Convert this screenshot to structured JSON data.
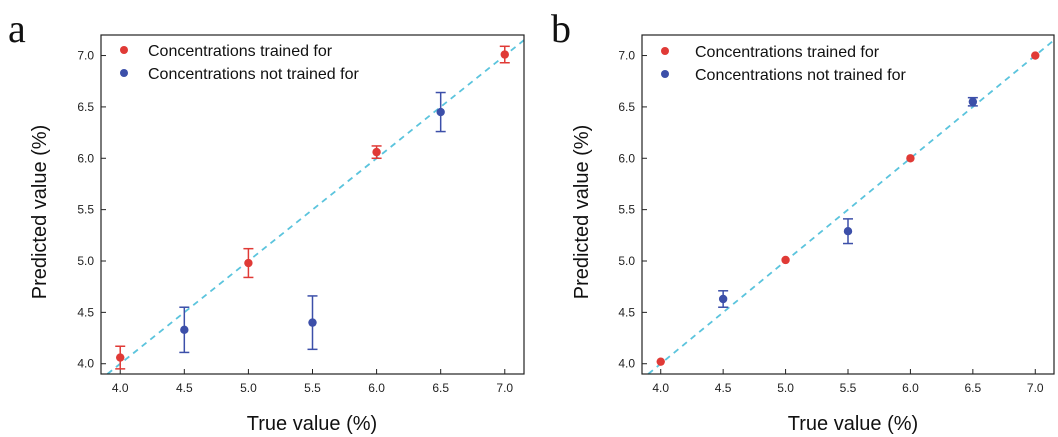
{
  "figure": {
    "colors": {
      "trained": "#e03a36",
      "not_trained": "#3c4fa9",
      "fit_line": "#5bc4dd",
      "axis": "#222222"
    }
  },
  "chart_data": [
    {
      "type": "scatter",
      "panel_label": "a",
      "xlabel": "True value (%)",
      "ylabel": "Predicted value (%)",
      "xlim": [
        3.85,
        7.15
      ],
      "ylim": [
        3.9,
        7.2
      ],
      "xticks": [
        "4.0",
        "4.5",
        "5.0",
        "5.5",
        "6.0",
        "6.5",
        "7.0"
      ],
      "yticks": [
        "4.0",
        "4.5",
        "5.0",
        "5.5",
        "6.0",
        "6.5",
        "7.0"
      ],
      "grid": false,
      "legend_position": "top-left",
      "reference_line": {
        "type": "y=x",
        "style": "dashed"
      },
      "series": [
        {
          "name": "Concentrations trained for",
          "color_key": "trained",
          "points": [
            {
              "x": 4.0,
              "y": 4.06,
              "err": 0.11
            },
            {
              "x": 5.0,
              "y": 4.98,
              "err": 0.14
            },
            {
              "x": 6.0,
              "y": 6.06,
              "err": 0.06
            },
            {
              "x": 7.0,
              "y": 7.01,
              "err": 0.08
            }
          ]
        },
        {
          "name": "Concentrations not trained for",
          "color_key": "not_trained",
          "points": [
            {
              "x": 4.5,
              "y": 4.33,
              "err": 0.22
            },
            {
              "x": 5.5,
              "y": 4.4,
              "err": 0.26
            },
            {
              "x": 6.5,
              "y": 6.45,
              "err": 0.19
            }
          ]
        }
      ]
    },
    {
      "type": "scatter",
      "panel_label": "b",
      "xlabel": "True value (%)",
      "ylabel": "Predicted value (%)",
      "xlim": [
        3.85,
        7.15
      ],
      "ylim": [
        3.9,
        7.2
      ],
      "xticks": [
        "4.0",
        "4.5",
        "5.0",
        "5.5",
        "6.0",
        "6.5",
        "7.0"
      ],
      "yticks": [
        "4.0",
        "4.5",
        "5.0",
        "5.5",
        "6.0",
        "6.5",
        "7.0"
      ],
      "grid": false,
      "legend_position": "top-left",
      "reference_line": {
        "type": "y=x",
        "style": "dashed"
      },
      "series": [
        {
          "name": "Concentrations trained for",
          "color_key": "trained",
          "points": [
            {
              "x": 4.0,
              "y": 4.02,
              "err": 0.0
            },
            {
              "x": 5.0,
              "y": 5.01,
              "err": 0.0
            },
            {
              "x": 6.0,
              "y": 6.0,
              "err": 0.0
            },
            {
              "x": 7.0,
              "y": 7.0,
              "err": 0.0
            }
          ]
        },
        {
          "name": "Concentrations not trained for",
          "color_key": "not_trained",
          "points": [
            {
              "x": 4.5,
              "y": 4.63,
              "err": 0.08
            },
            {
              "x": 5.5,
              "y": 5.29,
              "err": 0.12
            },
            {
              "x": 6.5,
              "y": 6.55,
              "err": 0.04
            }
          ]
        }
      ]
    }
  ]
}
